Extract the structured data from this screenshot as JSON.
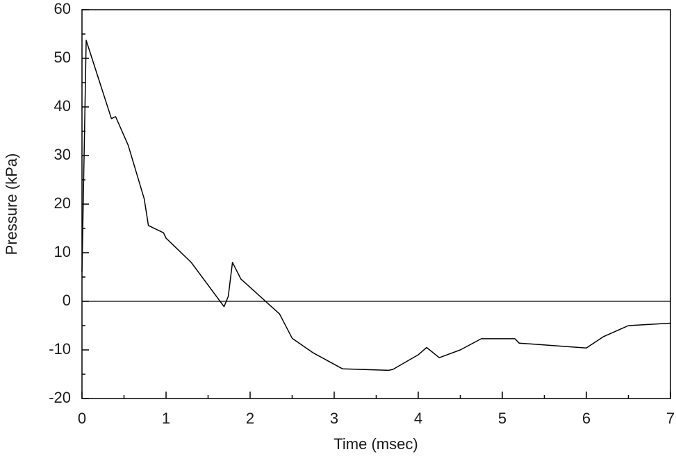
{
  "chart_data": {
    "type": "line",
    "x_label": "Time (msec)",
    "y_label": "Pressure (kPa)",
    "x": [
      0,
      0.05,
      0.35,
      0.4,
      0.55,
      0.74,
      0.79,
      0.97,
      1.0,
      1.3,
      1.69,
      1.74,
      1.79,
      1.89,
      2.35,
      2.5,
      2.75,
      3.1,
      3.65,
      3.7,
      3.85,
      4.0,
      4.1,
      4.25,
      4.5,
      4.75,
      5.15,
      5.2,
      6.0,
      6.2,
      6.5,
      7.0
    ],
    "series": [
      {
        "color": "#000000",
        "values": [
          6,
          53.7,
          37.6,
          38,
          32.1,
          21.1,
          15.6,
          14.1,
          13,
          8,
          -1.1,
          1,
          8,
          4.6,
          -2.6,
          -7.6,
          -10.6,
          -13.9,
          -14.2,
          -14,
          -12.5,
          -11,
          -9.5,
          -11.6,
          -10,
          -7.7,
          -7.7,
          -8.6,
          -9.6,
          -7.3,
          -5,
          -4.5
        ]
      }
    ],
    "hlines": [
      0
    ],
    "xlim": [
      0,
      7
    ],
    "xticks": [
      0,
      1,
      2,
      3,
      4,
      5,
      6,
      7
    ],
    "ylim": [
      -20,
      60
    ],
    "yticks": [
      -20,
      -10,
      0,
      10,
      20,
      30,
      40,
      50,
      60
    ],
    "grid": false
  }
}
